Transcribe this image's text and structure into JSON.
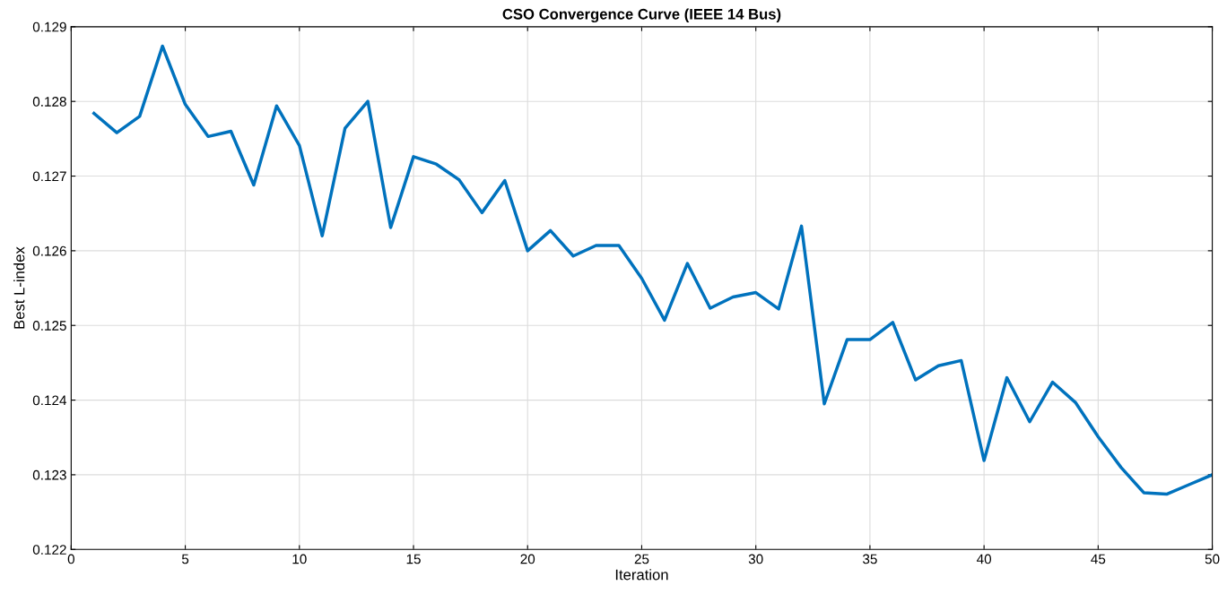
{
  "chart_data": {
    "type": "line",
    "title": "CSO Convergence Curve (IEEE 14 Bus)",
    "xlabel": "Iteration",
    "ylabel": "Best L-index",
    "x": [
      1,
      2,
      3,
      4,
      5,
      6,
      7,
      8,
      9,
      10,
      11,
      12,
      13,
      14,
      15,
      16,
      17,
      18,
      19,
      20,
      21,
      22,
      23,
      24,
      25,
      26,
      27,
      28,
      29,
      30,
      31,
      32,
      33,
      34,
      35,
      36,
      37,
      38,
      39,
      40,
      41,
      42,
      43,
      44,
      45,
      46,
      47,
      48,
      49,
      50
    ],
    "series": [
      {
        "color": "#0072bd",
        "values": [
          0.12784,
          0.12758,
          0.1278,
          0.12874,
          0.12796,
          0.12753,
          0.1276,
          0.12688,
          0.12794,
          0.12741,
          0.1262,
          0.12764,
          0.128,
          0.12631,
          0.12726,
          0.12716,
          0.12695,
          0.12651,
          0.12694,
          0.126,
          0.12627,
          0.12593,
          0.12607,
          0.12607,
          0.12563,
          0.12507,
          0.12583,
          0.12523,
          0.12538,
          0.12544,
          0.12522,
          0.12633,
          0.12395,
          0.12481,
          0.12481,
          0.12504,
          0.12427,
          0.12446,
          0.12453,
          0.12319,
          0.1243,
          0.12371,
          0.12424,
          0.12397,
          0.12351,
          0.1231,
          0.12276,
          0.12274,
          0.12287,
          0.123
        ]
      }
    ],
    "xlim": [
      0,
      50
    ],
    "xticks": [
      0,
      5,
      10,
      15,
      20,
      25,
      30,
      35,
      40,
      45,
      50
    ],
    "ylim": [
      0.122,
      0.129
    ],
    "yticks": [
      {
        "value": 0.122,
        "label": "0.122"
      },
      {
        "value": 0.123,
        "label": "0.123"
      },
      {
        "value": 0.124,
        "label": "0.124"
      },
      {
        "value": 0.125,
        "label": "0.125"
      },
      {
        "value": 0.126,
        "label": "0.126"
      },
      {
        "value": 0.127,
        "label": "0.127"
      },
      {
        "value": 0.128,
        "label": "0.128"
      },
      {
        "value": 0.129,
        "label": "0.129"
      }
    ],
    "grid": true,
    "marker": "none",
    "line_style": "solid"
  }
}
